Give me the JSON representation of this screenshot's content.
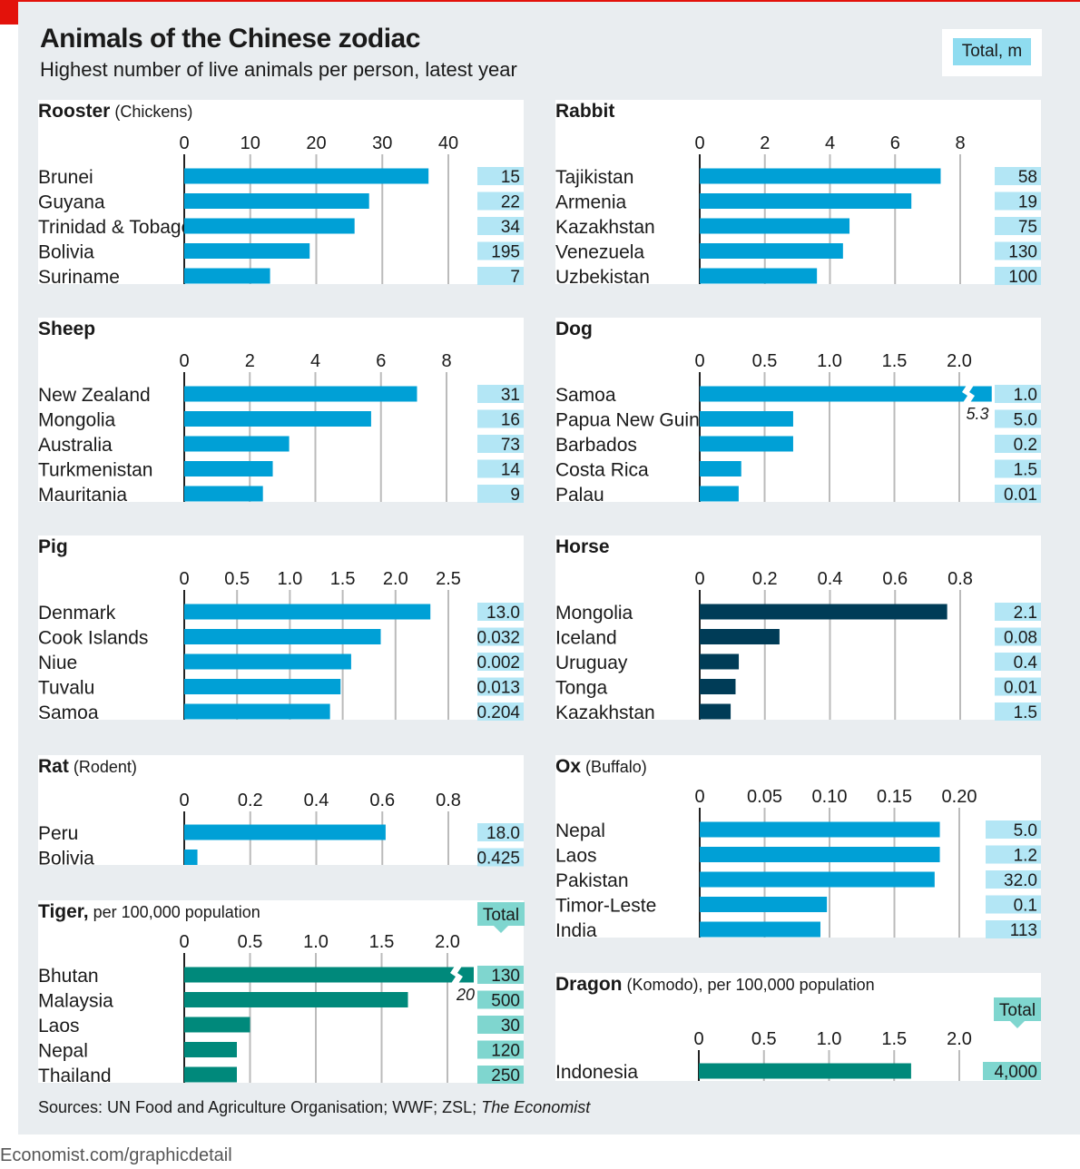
{
  "header": {
    "title": "Animals of the Chinese zodiac",
    "subtitle": "Highest number of live animals per person, latest year",
    "total_key": "Total, m"
  },
  "footer": {
    "source_prefix": "Sources: UN Food and Agriculture Organisation; WWF; ZSL; ",
    "source_italic": "The Economist",
    "site": "Economist.com/graphicdetail"
  },
  "colors": {
    "bar_blue": "#00a0d6",
    "bar_dark": "#003c57",
    "bar_teal": "#00897b",
    "total_blue": "#b3e6f5",
    "total_teal": "#7fd6cf",
    "gridline": "#bbbbbb",
    "brand_red": "#e3120b"
  },
  "chart_data": [
    {
      "id": "rooster",
      "type": "bar",
      "orientation": "horizontal",
      "title": "Rooster",
      "title_note": " (Chickens)",
      "categories": [
        "Brunei",
        "Guyana",
        "Trinidad & Tobago",
        "Bolivia",
        "Suriname"
      ],
      "values": [
        37,
        28,
        25.8,
        19,
        13
      ],
      "totals": [
        "15",
        "22",
        "34",
        "195",
        "7"
      ],
      "ticks": [
        0,
        10,
        20,
        30,
        40
      ],
      "tick_labels": [
        "0",
        "10",
        "20",
        "30",
        "40"
      ],
      "xlim": [
        0,
        40
      ],
      "bar_color": "bar_blue",
      "total_color": "total_blue"
    },
    {
      "id": "rabbit",
      "type": "bar",
      "orientation": "horizontal",
      "title": "Rabbit",
      "title_note": "",
      "categories": [
        "Tajikistan",
        "Armenia",
        "Kazakhstan",
        "Venezuela",
        "Uzbekistan"
      ],
      "values": [
        7.4,
        6.5,
        4.6,
        4.4,
        3.6
      ],
      "totals": [
        "58",
        "19",
        "75",
        "130",
        "100"
      ],
      "ticks": [
        0,
        2,
        4,
        6,
        8
      ],
      "tick_labels": [
        "0",
        "2",
        "4",
        "6",
        "8"
      ],
      "xlim": [
        0,
        8
      ],
      "bar_color": "bar_blue",
      "total_color": "total_blue"
    },
    {
      "id": "sheep",
      "type": "bar",
      "orientation": "horizontal",
      "title": "Sheep",
      "title_note": "",
      "categories": [
        "New Zealand",
        "Mongolia",
        "Australia",
        "Turkmenistan",
        "Mauritania"
      ],
      "values": [
        7.1,
        5.7,
        3.2,
        2.7,
        2.4
      ],
      "totals": [
        "31",
        "16",
        "73",
        "14",
        "9"
      ],
      "ticks": [
        0,
        2,
        4,
        6,
        8
      ],
      "tick_labels": [
        "0",
        "2",
        "4",
        "6",
        "8"
      ],
      "xlim": [
        0,
        8
      ],
      "bar_color": "bar_blue",
      "total_color": "total_blue"
    },
    {
      "id": "dog",
      "type": "bar",
      "orientation": "horizontal",
      "title": "Dog",
      "title_note": "",
      "categories": [
        "Samoa",
        "Papua New Guinea",
        "Barbados",
        "Costa Rica",
        "Palau"
      ],
      "values": [
        5.3,
        0.72,
        0.72,
        0.32,
        0.3
      ],
      "totals": [
        "1.0",
        "5.0",
        "0.2",
        "1.5",
        "0.01"
      ],
      "ticks": [
        0,
        0.5,
        1.0,
        1.5,
        2.0
      ],
      "tick_labels": [
        "0",
        "0.5",
        "1.0",
        "1.5",
        "2.0"
      ],
      "xlim": [
        0,
        2.0
      ],
      "bar_color": "bar_blue",
      "total_color": "total_blue",
      "break": {
        "index": 0,
        "label": "5.3",
        "shown_value": 2.25
      }
    },
    {
      "id": "pig",
      "type": "bar",
      "orientation": "horizontal",
      "title": "Pig",
      "title_note": "",
      "categories": [
        "Denmark",
        "Cook Islands",
        "Niue",
        "Tuvalu",
        "Samoa"
      ],
      "values": [
        2.33,
        1.86,
        1.58,
        1.48,
        1.38
      ],
      "totals": [
        "13.0",
        "0.032",
        "0.002",
        "0.013",
        "0.204"
      ],
      "ticks": [
        0,
        0.5,
        1.0,
        1.5,
        2.0,
        2.5
      ],
      "tick_labels": [
        "0",
        "0.5",
        "1.0",
        "1.5",
        "2.0",
        "2.5"
      ],
      "xlim": [
        0,
        2.5
      ],
      "bar_color": "bar_blue",
      "total_color": "total_blue"
    },
    {
      "id": "horse",
      "type": "bar",
      "orientation": "horizontal",
      "title": "Horse",
      "title_note": "",
      "categories": [
        "Mongolia",
        "Iceland",
        "Uruguay",
        "Tonga",
        "Kazakhstan"
      ],
      "values": [
        0.76,
        0.245,
        0.12,
        0.11,
        0.095
      ],
      "totals": [
        "2.1",
        "0.08",
        "0.4",
        "0.01",
        "1.5"
      ],
      "ticks": [
        0,
        0.2,
        0.4,
        0.6,
        0.8
      ],
      "tick_labels": [
        "0",
        "0.2",
        "0.4",
        "0.6",
        "0.8"
      ],
      "xlim": [
        0,
        0.8
      ],
      "bar_color": "bar_dark",
      "total_color": "total_blue"
    },
    {
      "id": "rat",
      "type": "bar",
      "orientation": "horizontal",
      "title": "Rat",
      "title_note": " (Rodent)",
      "categories": [
        "Peru",
        "Bolivia"
      ],
      "values": [
        0.61,
        0.04
      ],
      "totals": [
        "18.0",
        "0.425"
      ],
      "ticks": [
        0,
        0.2,
        0.4,
        0.6,
        0.8
      ],
      "tick_labels": [
        "0",
        "0.2",
        "0.4",
        "0.6",
        "0.8"
      ],
      "xlim": [
        0,
        0.8
      ],
      "bar_color": "bar_blue",
      "total_color": "total_blue"
    },
    {
      "id": "ox",
      "type": "bar",
      "orientation": "horizontal",
      "title": "Ox",
      "title_note": " (Buffalo)",
      "categories": [
        "Nepal",
        "Laos",
        "Pakistan",
        "Timor-Leste",
        "India"
      ],
      "values": [
        0.185,
        0.185,
        0.181,
        0.098,
        0.093
      ],
      "totals": [
        "5.0",
        "1.2",
        "32.0",
        "0.1",
        "113"
      ],
      "ticks": [
        0,
        0.05,
        0.1,
        0.15,
        0.2
      ],
      "tick_labels": [
        "0",
        "0.05",
        "0.10",
        "0.15",
        "0.20"
      ],
      "xlim": [
        0,
        0.2
      ],
      "bar_color": "bar_blue",
      "total_color": "total_blue"
    },
    {
      "id": "tiger",
      "type": "bar",
      "orientation": "horizontal",
      "title": "Tiger,",
      "title_note": " per 100,000 population",
      "total_tag": "Total",
      "categories": [
        "Bhutan",
        "Malaysia",
        "Laos",
        "Nepal",
        "Thailand"
      ],
      "values": [
        20,
        1.7,
        0.5,
        0.4,
        0.4
      ],
      "totals": [
        "130",
        "500",
        "30",
        "120",
        "250"
      ],
      "ticks": [
        0,
        0.5,
        1.0,
        1.5,
        2.0
      ],
      "tick_labels": [
        "0",
        "0.5",
        "1.0",
        "1.5",
        "2.0"
      ],
      "xlim": [
        0,
        2.0
      ],
      "bar_color": "bar_teal",
      "total_color": "total_teal",
      "break": {
        "index": 0,
        "label": "20",
        "shown_value": 2.2
      }
    },
    {
      "id": "dragon",
      "type": "bar",
      "orientation": "horizontal",
      "title": "Dragon",
      "title_note": " (Komodo), per 100,000 population",
      "total_tag": "Total",
      "categories": [
        "Indonesia"
      ],
      "values": [
        1.63
      ],
      "totals": [
        "4,000"
      ],
      "ticks": [
        0,
        0.5,
        1.0,
        1.5,
        2.0
      ],
      "tick_labels": [
        "0",
        "0.5",
        "1.0",
        "1.5",
        "2.0"
      ],
      "xlim": [
        0,
        2.0
      ],
      "bar_color": "bar_teal",
      "total_color": "total_teal"
    }
  ]
}
